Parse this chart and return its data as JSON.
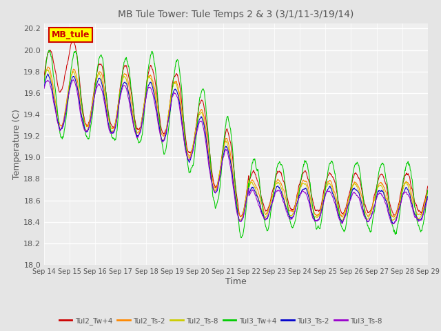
{
  "title": "MB Tule Tower: Tule Temps 2 & 3 (3/1/11-3/19/14)",
  "xlabel": "Time",
  "ylabel": "Temperature (C)",
  "ylim": [
    18.0,
    20.25
  ],
  "yticks": [
    18.0,
    18.2,
    18.4,
    18.6,
    18.8,
    19.0,
    19.2,
    19.4,
    19.6,
    19.8,
    20.0,
    20.2
  ],
  "background_color": "#e5e5e5",
  "plot_bg_color": "#efefef",
  "grid_color": "#ffffff",
  "legend_label": "MB_tule",
  "legend_bg": "#ffff00",
  "legend_border": "#cc0000",
  "series_colors": [
    "#cc0000",
    "#ff8800",
    "#cccc00",
    "#00cc00",
    "#0000cc",
    "#9900cc"
  ],
  "series_labels": [
    "Tul2_Tw+4",
    "Tul2_Ts-2",
    "Tul2_Ts-8",
    "Tul3_Tw+4",
    "Tul3_Ts-2",
    "Tul3_Ts-8"
  ],
  "xtick_labels": [
    "Sep 14",
    "Sep 15",
    "Sep 16",
    "Sep 17",
    "Sep 18",
    "Sep 19",
    "Sep 20",
    "Sep 21",
    "Sep 22",
    "Sep 23",
    "Sep 24",
    "Sep 25",
    "Sep 26",
    "Sep 27",
    "Sep 28",
    "Sep 29"
  ],
  "n_points": 1500,
  "n_days": 15
}
